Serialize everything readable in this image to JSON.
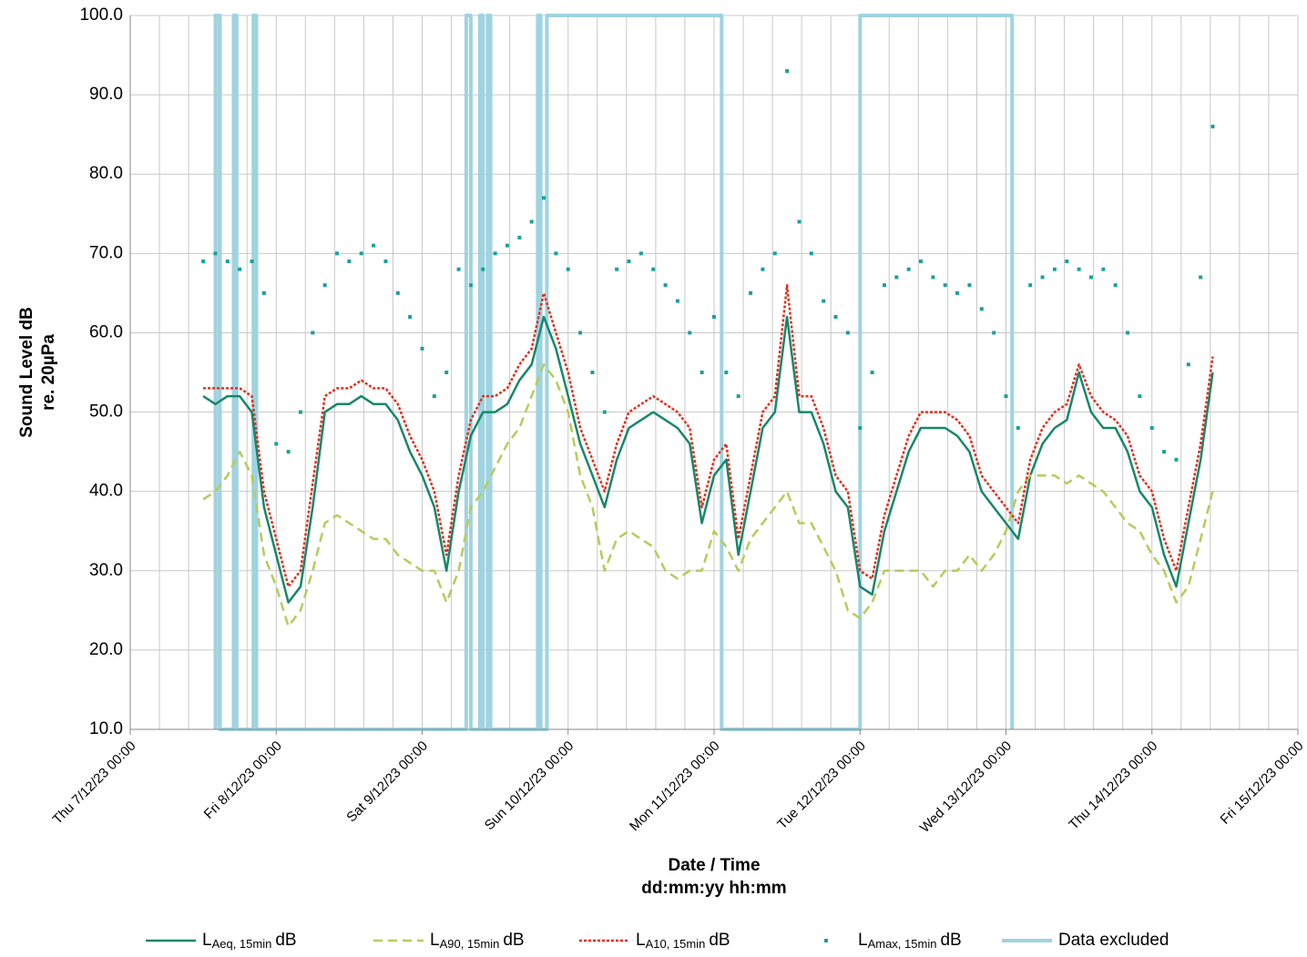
{
  "chart_data": {
    "type": "line",
    "ylabel": [
      "Sound Level dB",
      "re. 20µPa"
    ],
    "xlabel": [
      "Date / Time",
      "dd:mm:yy hh:mm"
    ],
    "ylim": [
      10,
      100
    ],
    "yticks": [
      {
        "value": 10,
        "label": "10.0"
      },
      {
        "value": 20,
        "label": "20.0"
      },
      {
        "value": 30,
        "label": "30.0"
      },
      {
        "value": 40,
        "label": "40.0"
      },
      {
        "value": 50,
        "label": "50.0"
      },
      {
        "value": 60,
        "label": "60.0"
      },
      {
        "value": 70,
        "label": "70.0"
      },
      {
        "value": 80,
        "label": "80.0"
      },
      {
        "value": 90,
        "label": "90.0"
      },
      {
        "value": 100,
        "label": "100.0"
      }
    ],
    "xlim": [
      "2023-12-07T00:00",
      "2023-12-15T00:00"
    ],
    "xticks": [
      {
        "value": "2023-12-07T00:00",
        "label": "Thu 7/12/23 00:00"
      },
      {
        "value": "2023-12-08T00:00",
        "label": "Fri 8/12/23 00:00"
      },
      {
        "value": "2023-12-09T00:00",
        "label": "Sat 9/12/23 00:00"
      },
      {
        "value": "2023-12-10T00:00",
        "label": "Sun 10/12/23 00:00"
      },
      {
        "value": "2023-12-11T00:00",
        "label": "Mon 11/12/23 00:00"
      },
      {
        "value": "2023-12-12T00:00",
        "label": "Tue 12/12/23 00:00"
      },
      {
        "value": "2023-12-13T00:00",
        "label": "Wed 13/12/23 00:00"
      },
      {
        "value": "2023-12-14T00:00",
        "label": "Thu 14/12/23 00:00"
      },
      {
        "value": "2023-12-15T00:00",
        "label": "Fri 15/12/23 00:00"
      }
    ],
    "grid": true,
    "x_grid_divisions": 5,
    "legend": "bottom",
    "x": [
      "2023-12-07T12:00",
      "2023-12-07T14:00",
      "2023-12-07T16:00",
      "2023-12-07T18:00",
      "2023-12-07T20:00",
      "2023-12-07T22:00",
      "2023-12-08T00:00",
      "2023-12-08T02:00",
      "2023-12-08T04:00",
      "2023-12-08T06:00",
      "2023-12-08T08:00",
      "2023-12-08T10:00",
      "2023-12-08T12:00",
      "2023-12-08T14:00",
      "2023-12-08T16:00",
      "2023-12-08T18:00",
      "2023-12-08T20:00",
      "2023-12-08T22:00",
      "2023-12-09T00:00",
      "2023-12-09T02:00",
      "2023-12-09T04:00",
      "2023-12-09T06:00",
      "2023-12-09T08:00",
      "2023-12-09T10:00",
      "2023-12-09T12:00",
      "2023-12-09T14:00",
      "2023-12-09T16:00",
      "2023-12-09T18:00",
      "2023-12-09T20:00",
      "2023-12-09T22:00",
      "2023-12-10T00:00",
      "2023-12-10T02:00",
      "2023-12-10T04:00",
      "2023-12-10T06:00",
      "2023-12-10T08:00",
      "2023-12-10T10:00",
      "2023-12-10T12:00",
      "2023-12-10T14:00",
      "2023-12-10T16:00",
      "2023-12-10T18:00",
      "2023-12-10T20:00",
      "2023-12-10T22:00",
      "2023-12-11T00:00",
      "2023-12-11T02:00",
      "2023-12-11T04:00",
      "2023-12-11T06:00",
      "2023-12-11T08:00",
      "2023-12-11T10:00",
      "2023-12-11T12:00",
      "2023-12-11T14:00",
      "2023-12-11T16:00",
      "2023-12-11T18:00",
      "2023-12-11T20:00",
      "2023-12-11T22:00",
      "2023-12-12T00:00",
      "2023-12-12T02:00",
      "2023-12-12T04:00",
      "2023-12-12T06:00",
      "2023-12-12T08:00",
      "2023-12-12T10:00",
      "2023-12-12T12:00",
      "2023-12-12T14:00",
      "2023-12-12T16:00",
      "2023-12-12T18:00",
      "2023-12-12T20:00",
      "2023-12-12T22:00",
      "2023-12-13T00:00",
      "2023-12-13T02:00",
      "2023-12-13T04:00",
      "2023-12-13T06:00",
      "2023-12-13T08:00",
      "2023-12-13T10:00",
      "2023-12-13T12:00",
      "2023-12-13T14:00",
      "2023-12-13T16:00",
      "2023-12-13T18:00",
      "2023-12-13T20:00",
      "2023-12-13T22:00",
      "2023-12-14T00:00",
      "2023-12-14T02:00",
      "2023-12-14T04:00",
      "2023-12-14T06:00",
      "2023-12-14T08:00",
      "2023-12-14T10:00"
    ],
    "series": [
      {
        "name": [
          "L",
          "Aeq, 15min",
          "dB"
        ],
        "color": "#17876b",
        "style": "solid",
        "values": [
          52,
          51,
          52,
          52,
          50,
          38,
          32,
          26,
          28,
          38,
          50,
          51,
          51,
          52,
          51,
          51,
          49,
          45,
          42,
          38,
          30,
          40,
          47,
          50,
          50,
          51,
          54,
          56,
          62,
          58,
          52,
          46,
          42,
          38,
          44,
          48,
          49,
          50,
          49,
          48,
          46,
          36,
          42,
          44,
          32,
          40,
          48,
          50,
          62,
          50,
          50,
          46,
          40,
          38,
          28,
          27,
          35,
          40,
          45,
          48,
          48,
          48,
          47,
          45,
          40,
          38,
          36,
          34,
          42,
          46,
          48,
          49,
          55,
          50,
          48,
          48,
          45,
          40,
          38,
          32,
          28,
          36,
          44,
          55
        ]
      },
      {
        "name": [
          "L",
          "A90, 15min",
          "dB"
        ],
        "color": "#b5cc5c",
        "style": "dashed",
        "values": [
          39,
          40,
          42,
          45,
          42,
          32,
          28,
          23,
          25,
          30,
          36,
          37,
          36,
          35,
          34,
          34,
          32,
          31,
          30,
          30,
          26,
          30,
          38,
          40,
          43,
          46,
          48,
          52,
          56,
          54,
          50,
          42,
          38,
          30,
          34,
          35,
          34,
          33,
          30,
          29,
          30,
          30,
          35,
          33,
          30,
          34,
          36,
          38,
          40,
          36,
          36,
          33,
          30,
          25,
          24,
          26,
          30,
          30,
          30,
          30,
          28,
          30,
          30,
          32,
          30,
          32,
          35,
          40,
          42,
          42,
          42,
          41,
          42,
          41,
          40,
          38,
          36,
          35,
          32,
          30,
          26,
          28,
          34,
          40
        ]
      },
      {
        "name": [
          "L",
          "A10, 15min",
          "dB"
        ],
        "color": "#e0301e",
        "style": "dotted",
        "values": [
          53,
          53,
          53,
          53,
          52,
          40,
          34,
          28,
          30,
          41,
          52,
          53,
          53,
          54,
          53,
          53,
          51,
          47,
          44,
          40,
          32,
          42,
          49,
          52,
          52,
          53,
          56,
          58,
          65,
          60,
          55,
          48,
          44,
          40,
          46,
          50,
          51,
          52,
          51,
          50,
          48,
          38,
          44,
          46,
          34,
          42,
          50,
          52,
          66,
          52,
          52,
          48,
          42,
          40,
          30,
          29,
          37,
          42,
          47,
          50,
          50,
          50,
          49,
          47,
          42,
          40,
          38,
          36,
          44,
          48,
          50,
          51,
          56,
          52,
          50,
          49,
          47,
          42,
          40,
          34,
          30,
          38,
          46,
          57
        ]
      },
      {
        "name": [
          "L",
          "Amax, 15min",
          "dB"
        ],
        "color": "#1aa09a",
        "style": "markers",
        "values": [
          69,
          70,
          69,
          68,
          69,
          65,
          46,
          45,
          50,
          60,
          66,
          70,
          69,
          70,
          71,
          69,
          65,
          62,
          58,
          52,
          55,
          68,
          66,
          68,
          70,
          71,
          72,
          74,
          77,
          70,
          68,
          60,
          55,
          50,
          68,
          69,
          70,
          68,
          66,
          64,
          60,
          55,
          62,
          55,
          52,
          65,
          68,
          70,
          93,
          74,
          70,
          64,
          62,
          60,
          48,
          55,
          66,
          67,
          68,
          69,
          67,
          66,
          65,
          66,
          63,
          60,
          52,
          48,
          66,
          67,
          68,
          69,
          68,
          67,
          68,
          66,
          60,
          52,
          48,
          45,
          44,
          56,
          67,
          86
        ]
      },
      {
        "name": "Data excluded",
        "color": "#9fd3e0",
        "style": "thick",
        "x": [
          "2023-12-07T14:00",
          "2023-12-07T14:00",
          "2023-12-07T14:45",
          "2023-12-07T14:45",
          "2023-12-07T17:00",
          "2023-12-07T17:00",
          "2023-12-07T17:30",
          "2023-12-07T17:30",
          "2023-12-07T20:15",
          "2023-12-07T20:15",
          "2023-12-07T20:45",
          "2023-12-07T20:45",
          "2023-12-09T07:15",
          "2023-12-09T07:15",
          "2023-12-09T08:00",
          "2023-12-09T08:00",
          "2023-12-09T09:30",
          "2023-12-09T09:30",
          "2023-12-09T10:00",
          "2023-12-09T10:00",
          "2023-12-09T10:45",
          "2023-12-09T10:45",
          "2023-12-09T11:15",
          "2023-12-09T11:15",
          "2023-12-09T19:00",
          "2023-12-09T19:00",
          "2023-12-09T19:30",
          "2023-12-09T19:30",
          "2023-12-09T20:30",
          "2023-12-09T20:30",
          "2023-12-11T01:15",
          "2023-12-11T01:15",
          "2023-12-12T00:00",
          "2023-12-12T00:00",
          "2023-12-13T01:00",
          "2023-12-13T01:00"
        ],
        "values": [
          10,
          100,
          100,
          10,
          10,
          100,
          100,
          10,
          10,
          100,
          100,
          10,
          10,
          100,
          100,
          10,
          10,
          100,
          100,
          10,
          10,
          100,
          100,
          10,
          10,
          100,
          100,
          10,
          10,
          100,
          100,
          10,
          10,
          100,
          100,
          10
        ]
      }
    ]
  }
}
